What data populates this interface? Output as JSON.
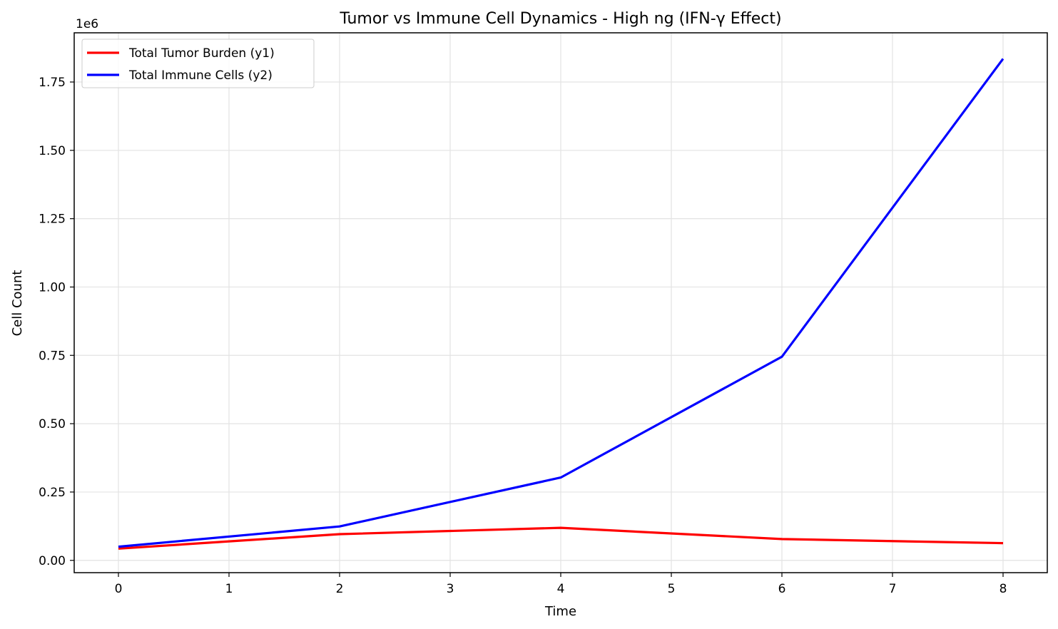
{
  "chart_data": {
    "type": "line",
    "title": "Tumor vs Immune Cell Dynamics - High ng (IFN-γ Effect)",
    "xlabel": "Time",
    "ylabel": "Cell Count",
    "y_offset_label": "1e6",
    "xlim": [
      -0.4,
      8.4
    ],
    "ylim": [
      -0.045,
      1.93
    ],
    "y_unit_multiplier": 1000000,
    "xticks": [
      0,
      1,
      2,
      3,
      4,
      5,
      6,
      7,
      8
    ],
    "xtick_labels": [
      "0",
      "1",
      "2",
      "3",
      "4",
      "5",
      "6",
      "7",
      "8"
    ],
    "yticks": [
      0,
      0.25,
      0.5,
      0.75,
      1.0,
      1.25,
      1.5,
      1.75
    ],
    "ytick_labels": [
      "0.00",
      "0.25",
      "0.50",
      "0.75",
      "1.00",
      "1.25",
      "1.50",
      "1.75"
    ],
    "grid": true,
    "legend_position": "top-left",
    "series": [
      {
        "name": "Total Tumor Burden (y1)",
        "color": "#ff0000",
        "x": [
          0,
          2,
          4,
          6,
          8
        ],
        "y": [
          0.043,
          0.096,
          0.119,
          0.078,
          0.063
        ]
      },
      {
        "name": "Total Immune Cells (y2)",
        "color": "#0000ff",
        "x": [
          0,
          2,
          4,
          6,
          8
        ],
        "y": [
          0.05,
          0.124,
          0.303,
          0.745,
          1.835
        ]
      }
    ]
  }
}
